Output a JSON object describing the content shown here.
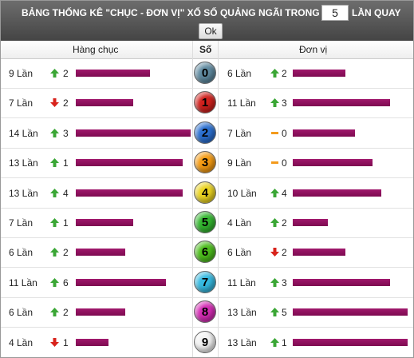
{
  "header": {
    "title": "BẢNG THỐNG KÊ \"CHỤC - ĐƠN VỊ\" XỔ SỐ QUẢNG NGÃI TRONG",
    "count": "5",
    "suffix": "LẦN QUAY",
    "button": "Ok"
  },
  "columns": {
    "tens": "Hàng chục",
    "digit": "Số",
    "units": "Đơn vị"
  },
  "rows": [
    {
      "digit": 0,
      "tens": {
        "count": 9,
        "label": "9 Lần",
        "trend": "up",
        "delta": 2
      },
      "units": {
        "count": 6,
        "label": "6 Lần",
        "trend": "up",
        "delta": 2
      }
    },
    {
      "digit": 1,
      "tens": {
        "count": 7,
        "label": "7 Lần",
        "trend": "down",
        "delta": 2
      },
      "units": {
        "count": 11,
        "label": "11 Lần",
        "trend": "up",
        "delta": 3
      }
    },
    {
      "digit": 2,
      "tens": {
        "count": 14,
        "label": "14 Lần",
        "trend": "up",
        "delta": 3
      },
      "units": {
        "count": 7,
        "label": "7 Lần",
        "trend": "flat",
        "delta": 0
      }
    },
    {
      "digit": 3,
      "tens": {
        "count": 13,
        "label": "13 Lần",
        "trend": "up",
        "delta": 1
      },
      "units": {
        "count": 9,
        "label": "9 Lần",
        "trend": "flat",
        "delta": 0
      }
    },
    {
      "digit": 4,
      "tens": {
        "count": 13,
        "label": "13 Lần",
        "trend": "up",
        "delta": 4
      },
      "units": {
        "count": 10,
        "label": "10 Lần",
        "trend": "up",
        "delta": 4
      }
    },
    {
      "digit": 5,
      "tens": {
        "count": 7,
        "label": "7 Lần",
        "trend": "up",
        "delta": 1
      },
      "units": {
        "count": 4,
        "label": "4 Lần",
        "trend": "up",
        "delta": 2
      }
    },
    {
      "digit": 6,
      "tens": {
        "count": 6,
        "label": "6 Lần",
        "trend": "up",
        "delta": 2
      },
      "units": {
        "count": 6,
        "label": "6 Lần",
        "trend": "down",
        "delta": 2
      }
    },
    {
      "digit": 7,
      "tens": {
        "count": 11,
        "label": "11 Lần",
        "trend": "up",
        "delta": 6
      },
      "units": {
        "count": 11,
        "label": "11 Lần",
        "trend": "up",
        "delta": 3
      }
    },
    {
      "digit": 8,
      "tens": {
        "count": 6,
        "label": "6 Lần",
        "trend": "up",
        "delta": 2
      },
      "units": {
        "count": 13,
        "label": "13 Lần",
        "trend": "up",
        "delta": 5
      }
    },
    {
      "digit": 9,
      "tens": {
        "count": 4,
        "label": "4 Lần",
        "trend": "down",
        "delta": 1
      },
      "units": {
        "count": 13,
        "label": "13 Lần",
        "trend": "up",
        "delta": 1
      }
    }
  ]
}
